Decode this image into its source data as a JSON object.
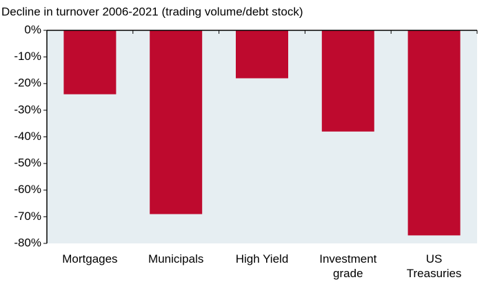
{
  "chart_data": {
    "type": "bar",
    "subtitle": "Decline in turnover 2006-2021 (trading volume/debt stock)",
    "categories": [
      "Mortgages",
      "Municipals",
      "High Yield",
      "Investment grade",
      "US Treasuries"
    ],
    "values": [
      -24,
      -69,
      -18,
      -38,
      -77
    ],
    "color": "#be0a2e",
    "ylim": [
      -80,
      0
    ],
    "yticks": [
      {
        "value": 0,
        "label": "0%"
      },
      {
        "value": -10,
        "label": "-10%"
      },
      {
        "value": -20,
        "label": "-20%"
      },
      {
        "value": -30,
        "label": "-30%"
      },
      {
        "value": -40,
        "label": "-40%"
      },
      {
        "value": -50,
        "label": "-50%"
      },
      {
        "value": -60,
        "label": "-60%"
      },
      {
        "value": -70,
        "label": "-70%"
      },
      {
        "value": -80,
        "label": "-80%"
      }
    ],
    "grid": false
  }
}
